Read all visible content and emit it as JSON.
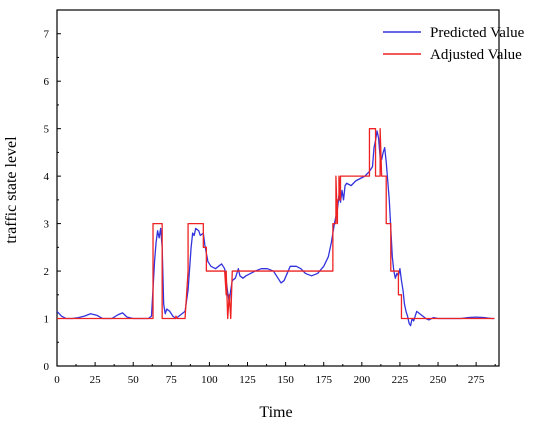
{
  "chart_data": {
    "type": "line",
    "xlabel": "Time",
    "ylabel": "traffic state level",
    "xlim": [
      0,
      290
    ],
    "ylim": [
      0,
      7.5
    ],
    "x_ticks": [
      "0",
      "25",
      "50",
      "75",
      "100",
      "125",
      "150",
      "175",
      "200",
      "225",
      "250",
      "275"
    ],
    "y_ticks": [
      "0",
      "1",
      "2",
      "3",
      "4",
      "5",
      "6",
      "7"
    ],
    "grid": false,
    "legend_position": "top-right",
    "series": [
      {
        "name": "Predicted Value",
        "color": "#3333dd",
        "points": [
          [
            0,
            1.15
          ],
          [
            3,
            1.05
          ],
          [
            6,
            1.0
          ],
          [
            10,
            1.0
          ],
          [
            14,
            1.02
          ],
          [
            18,
            1.05
          ],
          [
            22,
            1.1
          ],
          [
            26,
            1.07
          ],
          [
            30,
            1.0
          ],
          [
            36,
            1.0
          ],
          [
            40,
            1.08
          ],
          [
            43,
            1.12
          ],
          [
            46,
            1.03
          ],
          [
            50,
            1.0
          ],
          [
            55,
            1.0
          ],
          [
            60,
            1.0
          ],
          [
            62,
            1.05
          ],
          [
            64,
            2.2
          ],
          [
            65,
            2.6
          ],
          [
            66,
            2.85
          ],
          [
            67,
            2.7
          ],
          [
            68,
            2.9
          ],
          [
            69,
            2.5
          ],
          [
            70,
            1.3
          ],
          [
            71,
            1.1
          ],
          [
            72,
            1.2
          ],
          [
            74,
            1.15
          ],
          [
            76,
            1.05
          ],
          [
            78,
            1.0
          ],
          [
            80,
            1.05
          ],
          [
            82,
            1.1
          ],
          [
            84,
            1.15
          ],
          [
            86,
            1.6
          ],
          [
            88,
            2.5
          ],
          [
            89,
            2.8
          ],
          [
            90,
            2.75
          ],
          [
            91,
            2.9
          ],
          [
            93,
            2.85
          ],
          [
            94,
            2.75
          ],
          [
            96,
            2.8
          ],
          [
            97,
            2.55
          ],
          [
            99,
            2.2
          ],
          [
            101,
            2.1
          ],
          [
            104,
            2.05
          ],
          [
            106,
            2.1
          ],
          [
            108,
            2.15
          ],
          [
            110,
            2.05
          ],
          [
            112,
            1.55
          ],
          [
            113,
            1.35
          ],
          [
            114,
            1.6
          ],
          [
            115,
            1.8
          ],
          [
            117,
            1.85
          ],
          [
            119,
            2.05
          ],
          [
            120,
            1.9
          ],
          [
            122,
            1.85
          ],
          [
            124,
            1.9
          ],
          [
            127,
            1.95
          ],
          [
            130,
            2.0
          ],
          [
            134,
            2.05
          ],
          [
            138,
            2.05
          ],
          [
            142,
            2.0
          ],
          [
            145,
            1.85
          ],
          [
            147,
            1.75
          ],
          [
            149,
            1.8
          ],
          [
            151,
            1.95
          ],
          [
            153,
            2.1
          ],
          [
            157,
            2.1
          ],
          [
            160,
            2.05
          ],
          [
            163,
            1.95
          ],
          [
            167,
            1.9
          ],
          [
            171,
            1.95
          ],
          [
            175,
            2.1
          ],
          [
            178,
            2.3
          ],
          [
            180,
            2.6
          ],
          [
            182,
            3.0
          ],
          [
            184,
            3.3
          ],
          [
            185,
            3.6
          ],
          [
            186,
            3.45
          ],
          [
            187,
            3.7
          ],
          [
            188,
            3.5
          ],
          [
            189,
            3.8
          ],
          [
            190,
            3.85
          ],
          [
            193,
            3.8
          ],
          [
            196,
            3.9
          ],
          [
            199,
            3.95
          ],
          [
            202,
            4.0
          ],
          [
            205,
            4.1
          ],
          [
            207,
            4.2
          ],
          [
            208,
            4.6
          ],
          [
            209,
            4.75
          ],
          [
            210,
            4.95
          ],
          [
            211,
            4.8
          ],
          [
            212,
            4.4
          ],
          [
            213,
            4.35
          ],
          [
            214,
            4.5
          ],
          [
            215,
            4.6
          ],
          [
            216,
            4.3
          ],
          [
            217,
            3.9
          ],
          [
            218,
            3.5
          ],
          [
            219,
            2.9
          ],
          [
            220,
            2.3
          ],
          [
            221,
            2.0
          ],
          [
            222,
            1.85
          ],
          [
            223,
            1.95
          ],
          [
            224,
            1.9
          ],
          [
            225,
            2.05
          ],
          [
            226,
            1.8
          ],
          [
            227,
            1.6
          ],
          [
            228,
            1.3
          ],
          [
            229,
            1.15
          ],
          [
            230,
            1.05
          ],
          [
            231,
            0.9
          ],
          [
            232,
            0.85
          ],
          [
            233,
            1.0
          ],
          [
            234,
            0.95
          ],
          [
            236,
            1.15
          ],
          [
            238,
            1.1
          ],
          [
            240,
            1.05
          ],
          [
            242,
            1.0
          ],
          [
            244,
            0.97
          ],
          [
            247,
            1.02
          ],
          [
            250,
            1.0
          ],
          [
            255,
            1.0
          ],
          [
            260,
            1.0
          ],
          [
            265,
            1.0
          ],
          [
            270,
            1.02
          ],
          [
            275,
            1.03
          ],
          [
            280,
            1.02
          ],
          [
            285,
            1.0
          ],
          [
            287,
            1.0
          ]
        ]
      },
      {
        "name": "Adjusted Value",
        "color": "#ee2222",
        "points": [
          [
            0,
            1
          ],
          [
            63,
            1
          ],
          [
            63,
            3
          ],
          [
            69,
            3
          ],
          [
            69,
            1
          ],
          [
            78,
            1
          ],
          [
            78,
            1.05
          ],
          [
            79,
            1
          ],
          [
            84,
            1
          ],
          [
            86,
            2
          ],
          [
            86,
            3
          ],
          [
            96,
            3
          ],
          [
            96,
            2.5
          ],
          [
            98,
            2.5
          ],
          [
            98,
            2
          ],
          [
            110,
            2
          ],
          [
            111,
            1.5
          ],
          [
            111,
            2
          ],
          [
            112,
            1
          ],
          [
            113,
            1.5
          ],
          [
            114,
            1
          ],
          [
            115,
            2
          ],
          [
            181,
            2
          ],
          [
            181,
            3
          ],
          [
            183,
            3
          ],
          [
            183,
            4
          ],
          [
            184,
            3
          ],
          [
            184,
            3.5
          ],
          [
            185,
            3.5
          ],
          [
            185,
            4
          ],
          [
            186,
            3.5
          ],
          [
            186,
            4
          ],
          [
            205,
            4
          ],
          [
            205,
            5
          ],
          [
            209,
            5
          ],
          [
            209,
            4
          ],
          [
            212,
            4
          ],
          [
            212,
            5
          ],
          [
            213,
            4
          ],
          [
            216,
            4
          ],
          [
            216,
            3
          ],
          [
            219,
            3
          ],
          [
            219,
            2
          ],
          [
            224,
            2
          ],
          [
            224,
            1.5
          ],
          [
            226,
            1.5
          ],
          [
            226,
            1
          ],
          [
            230,
            1
          ],
          [
            230,
            1
          ],
          [
            287,
            1
          ]
        ]
      }
    ]
  }
}
